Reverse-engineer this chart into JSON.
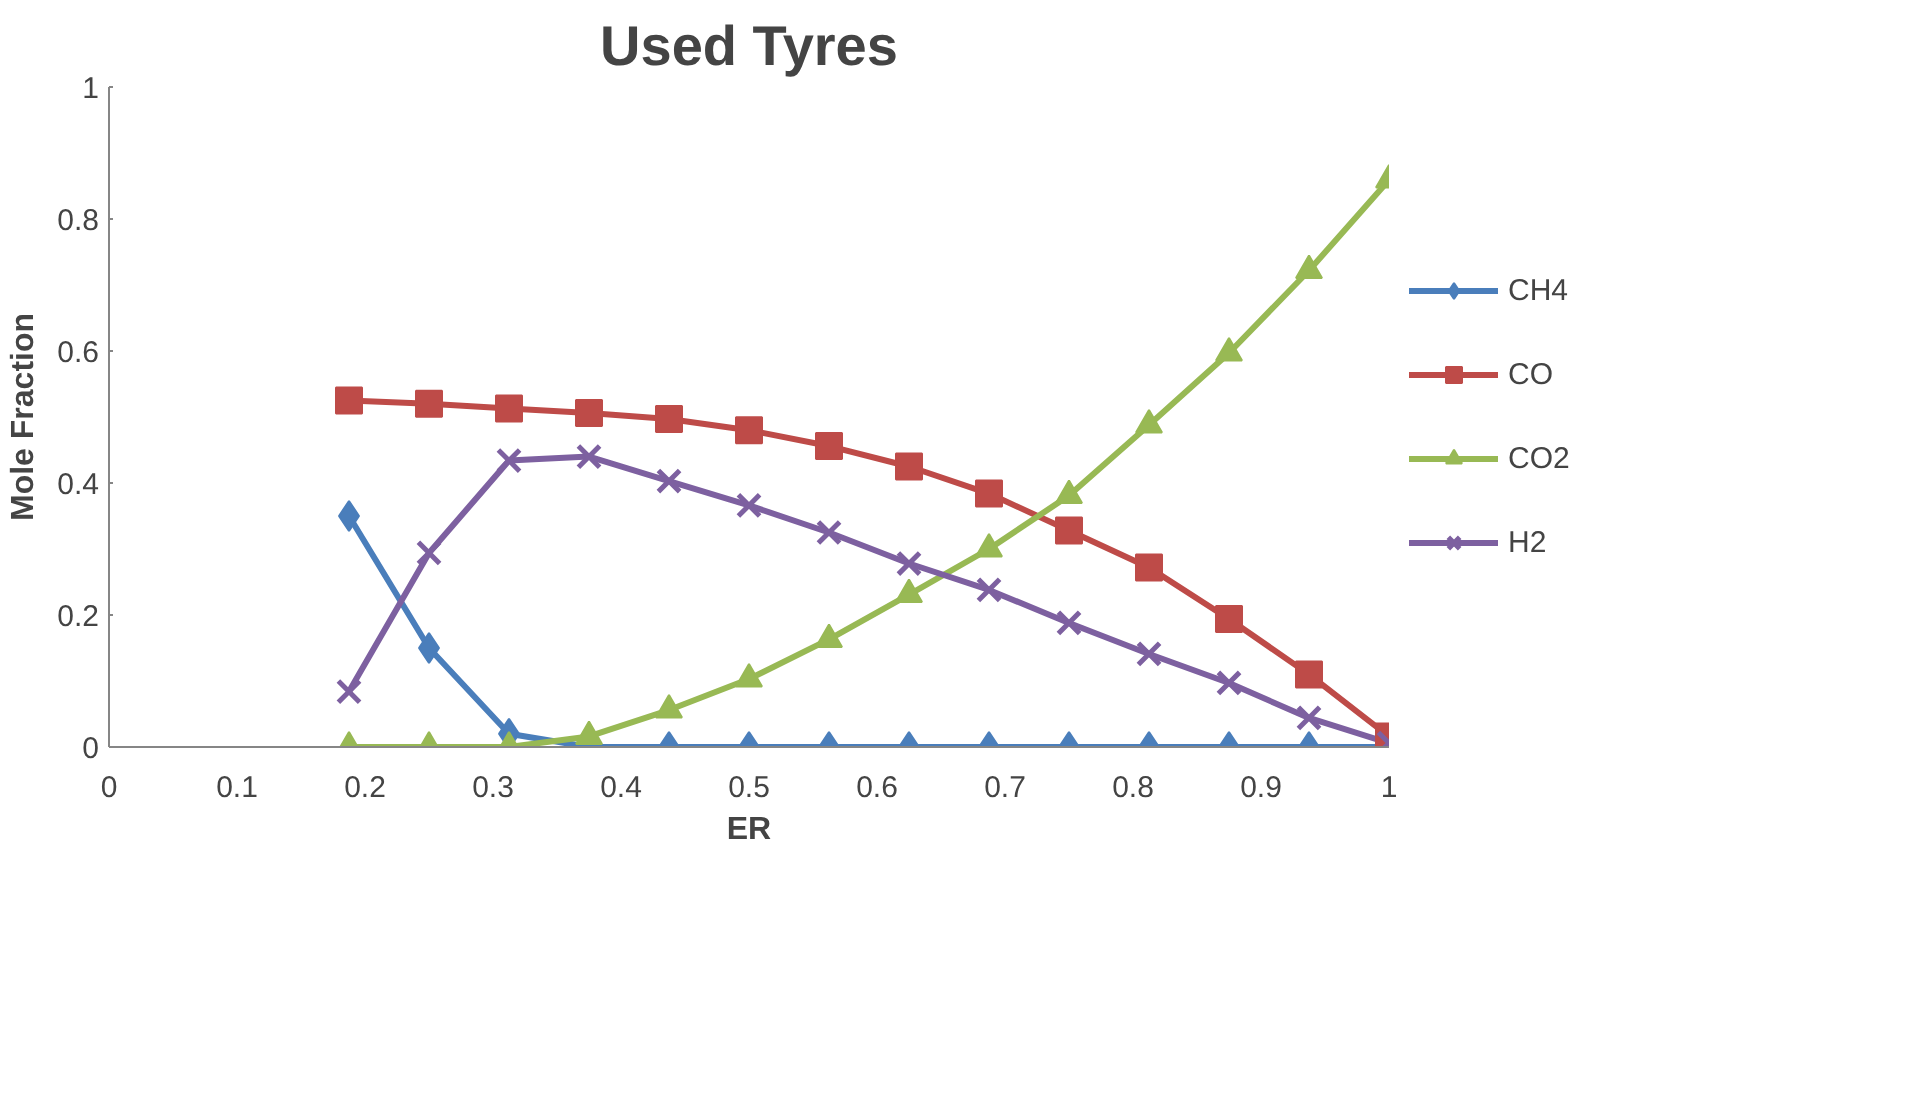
{
  "chart_data": {
    "type": "line",
    "title": "Used Tyres",
    "xlabel": "ER",
    "ylabel": "Mole Fraction",
    "x": [
      0.1875,
      0.25,
      0.3125,
      0.375,
      0.4375,
      0.5,
      0.5625,
      0.625,
      0.6875,
      0.75,
      0.8125,
      0.875,
      0.9375,
      1.0
    ],
    "xlim": [
      0,
      1
    ],
    "xticks": [
      0,
      0.1,
      0.2,
      0.3,
      0.4,
      0.5,
      0.6,
      0.7,
      0.8,
      0.9,
      1
    ],
    "ylim": [
      0,
      1
    ],
    "yticks": [
      0,
      0.2,
      0.4,
      0.6,
      0.8,
      1
    ],
    "grid": false,
    "legend": "right",
    "line_style": "solid",
    "series": [
      {
        "name": "CH4",
        "color": "#4a7ebb",
        "marker": "diamond",
        "values": [
          0.35,
          0.15,
          0.02,
          0,
          0,
          0,
          0,
          0,
          0,
          0,
          0,
          0,
          0,
          0
        ]
      },
      {
        "name": "CO",
        "color": "#be4b48",
        "marker": "square",
        "values": [
          0.525,
          0.52,
          0.513,
          0.506,
          0.497,
          0.48,
          0.456,
          0.425,
          0.384,
          0.328,
          0.272,
          0.194,
          0.11,
          0.016
        ]
      },
      {
        "name": "CO2",
        "color": "#98b954",
        "marker": "triangle",
        "values": [
          0,
          0,
          0,
          0.016,
          0.056,
          0.103,
          0.163,
          0.231,
          0.3,
          0.381,
          0.488,
          0.597,
          0.722,
          0.859
        ]
      },
      {
        "name": "H2",
        "color": "#7d60a0",
        "marker": "cross",
        "values": [
          0.084,
          0.294,
          0.434,
          0.44,
          0.403,
          0.366,
          0.325,
          0.278,
          0.238,
          0.188,
          0.141,
          0.097,
          0.044,
          0.006
        ]
      }
    ]
  }
}
